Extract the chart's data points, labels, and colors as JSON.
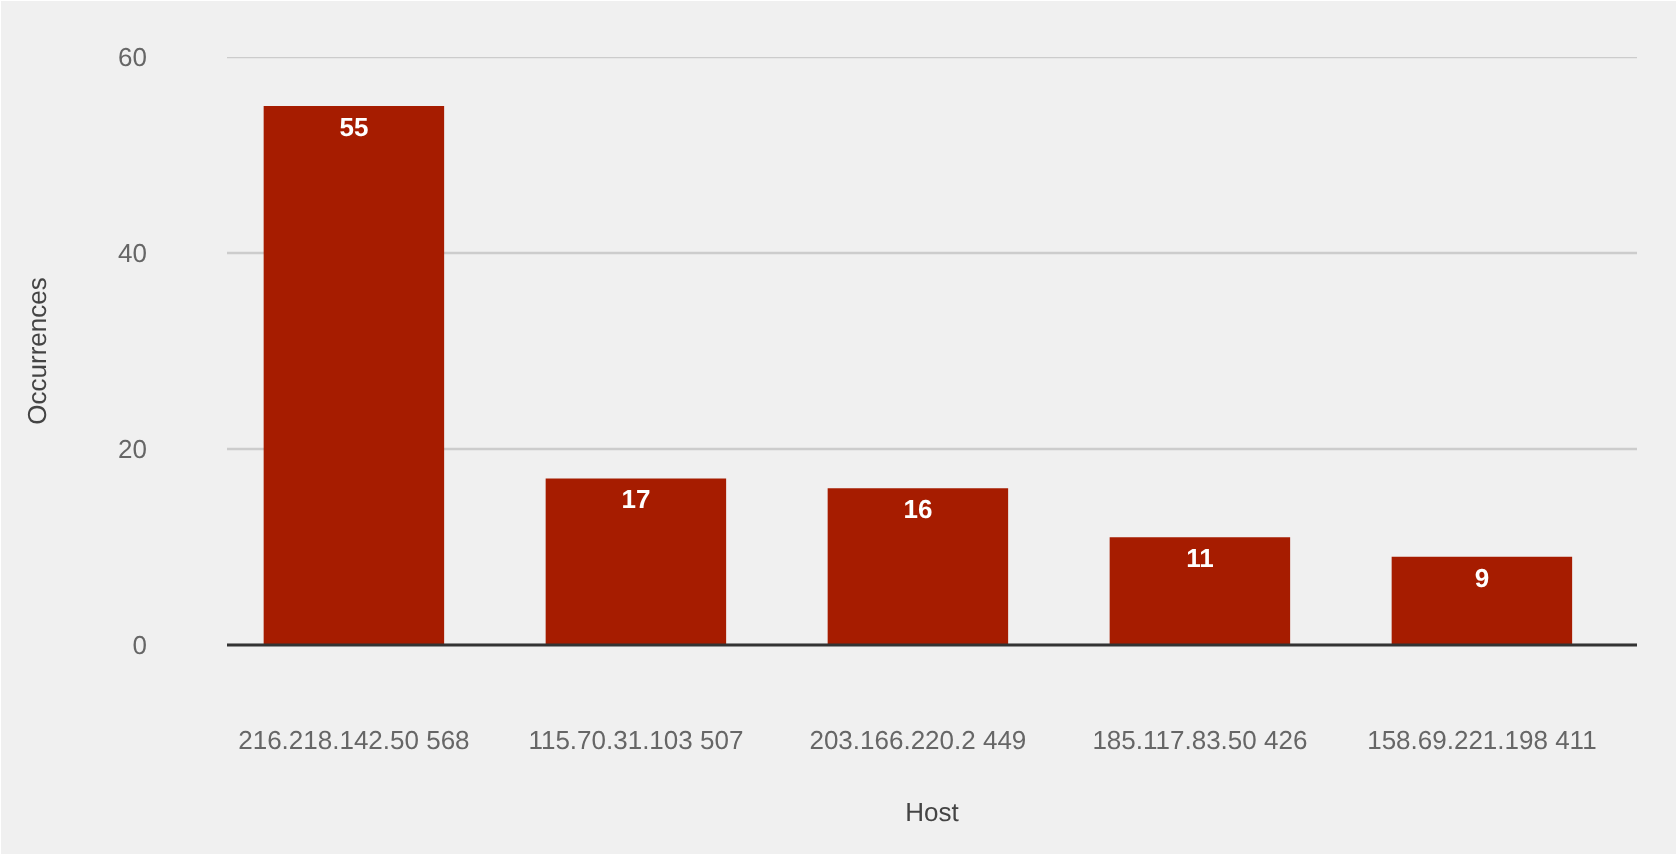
{
  "chart_data": {
    "type": "bar",
    "xlabel": "Host",
    "ylabel": "Occurrences",
    "categories": [
      "216.218.142.50 568",
      "115.70.31.103 507",
      "203.166.220.2 449",
      "185.117.83.50 426",
      "158.69.221.198 411"
    ],
    "values": [
      55,
      17,
      16,
      11,
      9
    ],
    "color": "#a61c00",
    "ylim": [
      0,
      60
    ],
    "yticks": [
      0,
      20,
      40,
      60
    ],
    "grid": "y",
    "data_labels": true
  }
}
